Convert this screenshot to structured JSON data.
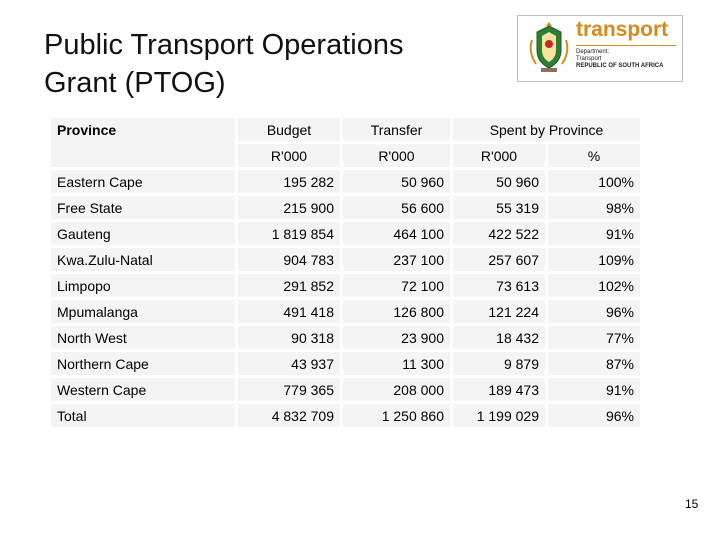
{
  "title": "Public Transport Operations Grant (PTOG)",
  "logo": {
    "word": "transport",
    "lines": [
      "Department:",
      "Transport",
      "REPUBLIC OF SOUTH AFRICA"
    ]
  },
  "table": {
    "header": {
      "province": "Province",
      "budget": "Budget",
      "transfer": "Transfer",
      "spent": "Spent by Province",
      "budget_unit": "R'000",
      "transfer_unit": "R'000",
      "spent_unit": "R'000",
      "pct_unit": "%"
    },
    "rows": [
      {
        "province": "Eastern Cape",
        "budget": "195 282",
        "transfer": "50 960",
        "spent": "50 960",
        "pct": "100%"
      },
      {
        "province": "Free State",
        "budget": "215 900",
        "transfer": "56 600",
        "spent": "55 319",
        "pct": "98%"
      },
      {
        "province": "Gauteng",
        "budget": "1 819 854",
        "transfer": "464 100",
        "spent": "422 522",
        "pct": "91%"
      },
      {
        "province": "Kwa.Zulu-Natal",
        "budget": "904 783",
        "transfer": "237 100",
        "spent": "257 607",
        "pct": "109%"
      },
      {
        "province": "Limpopo",
        "budget": "291 852",
        "transfer": "72 100",
        "spent": "73 613",
        "pct": "102%"
      },
      {
        "province": "Mpumalanga",
        "budget": "491 418",
        "transfer": "126 800",
        "spent": "121 224",
        "pct": "96%"
      },
      {
        "province": "North West",
        "budget": "90 318",
        "transfer": "23 900",
        "spent": "18 432",
        "pct": "77%"
      },
      {
        "province": "Northern Cape",
        "budget": "43 937",
        "transfer": "11 300",
        "spent": "9 879",
        "pct": "87%"
      },
      {
        "province": "Western Cape",
        "budget": "779 365",
        "transfer": "208 000",
        "spent": "189 473",
        "pct": "91%"
      }
    ],
    "total": {
      "province": "Total",
      "budget": "4 832 709",
      "transfer": "1 250 860",
      "spent": "1 199 029",
      "pct": "96%"
    }
  },
  "page_number": "15"
}
